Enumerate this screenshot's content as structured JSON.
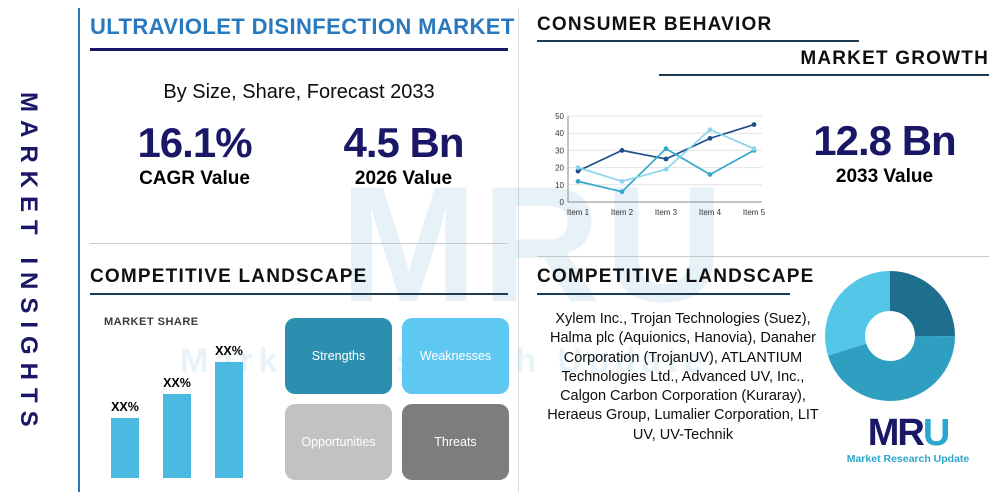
{
  "page": {
    "side_label": "MARKET INSIGHTS",
    "title": "ULTRAVIOLET DISINFECTION MARKET",
    "subtitle": "By Size, Share, Forecast 2033"
  },
  "brand_colors": {
    "navy": "#1b1767",
    "blue": "#2979be",
    "teal": "#2ba6cc"
  },
  "stats": {
    "cagr": {
      "value": "16.1%",
      "label": "CAGR Value"
    },
    "v2026": {
      "value": "4.5 Bn",
      "label": "2026 Value"
    },
    "v2033": {
      "value": "12.8 Bn",
      "label": "2033 Value"
    }
  },
  "sections": {
    "consumer_behavior": "CONSUMER BEHAVIOR",
    "market_growth": "MARKET GROWTH",
    "competitive_landscape_left": "COMPETITIVE LANDSCAPE",
    "competitive_landscape_right": "COMPETITIVE LANDSCAPE"
  },
  "swot": {
    "strengths": {
      "label": "Strengths",
      "color": "#2d8fb0"
    },
    "weaknesses": {
      "label": "Weaknesses",
      "color": "#5ec8f2"
    },
    "opportunities": {
      "label": "Opportunities",
      "color": "#c2c2c2"
    },
    "threats": {
      "label": "Threats",
      "color": "#7d7d7d"
    }
  },
  "companies": "Xylem Inc., Trojan Technologies (Suez), Halma plc (Aquionics, Hanovia), Danaher Corporation (TrojanUV), ATLANTIUM Technologies Ltd., Advanced UV, Inc., Calgon Carbon Corporation (Kuraray), Heraeus Group, Lumalier Corporation, LIT UV, UV-Technik",
  "logo": {
    "m": "M",
    "r": "R",
    "u": "U",
    "tagline": "Market Research Update"
  },
  "watermark": {
    "big": "MRU",
    "small": "Market Research Update"
  },
  "chart_data": [
    {
      "id": "market-growth-line",
      "type": "line",
      "categories": [
        "Item 1",
        "Item 2",
        "Item 3",
        "Item 4",
        "Item 5"
      ],
      "series": [
        {
          "name": "series-1",
          "color": "#1f4e8c",
          "values": [
            18,
            30,
            25,
            37,
            45
          ]
        },
        {
          "name": "series-2",
          "color": "#35a8cc",
          "values": [
            12,
            6,
            31,
            16,
            30
          ]
        },
        {
          "name": "series-3",
          "color": "#8bd6ec",
          "values": [
            20,
            12,
            19,
            42,
            31
          ]
        }
      ],
      "ylim": [
        0,
        50
      ],
      "yticks": [
        0,
        10,
        20,
        30,
        40,
        50
      ],
      "legend": "none",
      "grid": true
    },
    {
      "id": "market-share-bars",
      "type": "bar",
      "title": "MARKET SHARE",
      "categories": [
        "Bar 1",
        "Bar 2",
        "Bar 3"
      ],
      "values": [
        30,
        42,
        58
      ],
      "labels": [
        "XX%",
        "XX%",
        "XX%"
      ],
      "bar_color": "#4cb9e2",
      "ylim": [
        0,
        70
      ]
    },
    {
      "id": "company-share-donut",
      "type": "pie",
      "donut": true,
      "values": [
        25,
        45,
        30
      ],
      "colors": [
        "#1e6f8e",
        "#2f9fc1",
        "#54c6e8"
      ]
    }
  ]
}
